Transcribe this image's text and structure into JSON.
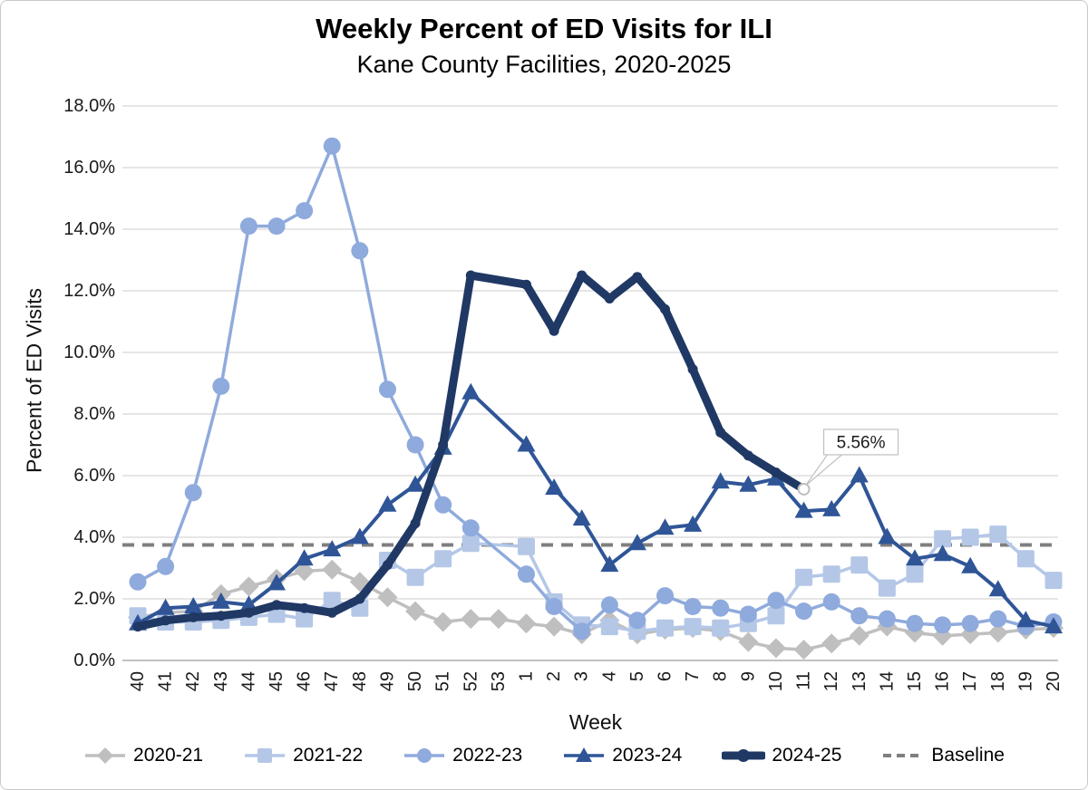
{
  "title": "Weekly Percent of ED Visits for ILI",
  "subtitle": "Kane County Facilities, 2020-2025",
  "chart_data": {
    "type": "line",
    "title": "Weekly Percent of ED Visits for ILI",
    "subtitle": "Kane County Facilities, 2020-2025",
    "xlabel": "Week",
    "ylabel": "Percent of ED Visits",
    "ylim": [
      0,
      18
    ],
    "y_tick_step": 2,
    "y_tick_labels": [
      "0.0%",
      "2.0%",
      "4.0%",
      "6.0%",
      "8.0%",
      "10.0%",
      "12.0%",
      "14.0%",
      "16.0%",
      "18.0%"
    ],
    "grid": true,
    "legend_position": "bottom",
    "categories": [
      "40",
      "41",
      "42",
      "43",
      "44",
      "45",
      "46",
      "47",
      "48",
      "49",
      "50",
      "51",
      "52",
      "53",
      "1",
      "2",
      "3",
      "4",
      "5",
      "6",
      "7",
      "8",
      "9",
      "10",
      "11",
      "12",
      "13",
      "14",
      "15",
      "16",
      "17",
      "18",
      "19",
      "20"
    ],
    "series": [
      {
        "name": "2020-21",
        "color": "#BFBFBF",
        "marker": "diamond",
        "line_width": 3.5,
        "values": [
          1.4,
          1.55,
          1.6,
          2.15,
          2.4,
          2.65,
          2.9,
          2.95,
          2.55,
          2.05,
          1.6,
          1.25,
          1.35,
          1.35,
          1.2,
          1.1,
          0.85,
          1.3,
          0.85,
          1.0,
          1.05,
          0.95,
          0.6,
          0.4,
          0.35,
          0.55,
          0.8,
          1.1,
          0.9,
          0.8,
          0.85,
          0.9,
          1.0,
          1.05
        ]
      },
      {
        "name": "2021-22",
        "color": "#B4C7E7",
        "marker": "square",
        "line_width": 3.5,
        "values": [
          1.45,
          1.25,
          1.25,
          1.3,
          1.4,
          1.5,
          1.35,
          1.95,
          1.7,
          3.25,
          2.7,
          3.3,
          3.8,
          null,
          3.7,
          1.9,
          1.15,
          1.1,
          0.95,
          1.05,
          1.1,
          1.05,
          1.2,
          1.45,
          2.7,
          2.8,
          3.1,
          2.35,
          2.8,
          3.95,
          4.0,
          4.1,
          3.3,
          2.6
        ]
      },
      {
        "name": "2022-23",
        "color": "#8FAADC",
        "marker": "circle",
        "line_width": 3.5,
        "values": [
          2.55,
          3.05,
          5.45,
          8.9,
          14.1,
          14.1,
          14.6,
          16.7,
          13.3,
          8.8,
          7.0,
          5.05,
          4.3,
          null,
          2.8,
          1.75,
          0.95,
          1.8,
          1.3,
          2.1,
          1.75,
          1.7,
          1.5,
          1.95,
          1.6,
          1.9,
          1.45,
          1.35,
          1.2,
          1.15,
          1.2,
          1.35,
          1.1,
          1.25
        ]
      },
      {
        "name": "2023-24",
        "color": "#2F5597",
        "marker": "triangle",
        "line_width": 4,
        "values": [
          1.2,
          1.7,
          1.75,
          1.9,
          1.8,
          2.5,
          3.3,
          3.6,
          4.0,
          5.05,
          5.7,
          6.9,
          8.7,
          null,
          7.0,
          5.6,
          4.6,
          3.1,
          3.8,
          4.3,
          4.4,
          5.8,
          5.7,
          5.9,
          4.85,
          4.9,
          6.0,
          4.0,
          3.3,
          3.45,
          3.05,
          2.3,
          1.3,
          1.1
        ]
      },
      {
        "name": "2024-25",
        "color": "#203864",
        "marker": "dot",
        "line_width": 9,
        "values": [
          1.1,
          1.3,
          1.4,
          1.45,
          1.55,
          1.8,
          1.7,
          1.55,
          2.0,
          3.1,
          4.45,
          7.0,
          12.5,
          null,
          12.2,
          10.7,
          12.5,
          11.75,
          12.45,
          11.4,
          9.45,
          7.4,
          6.65,
          6.1,
          5.56,
          null,
          null,
          null,
          null,
          null,
          null,
          null,
          null,
          null
        ]
      }
    ],
    "baseline": {
      "name": "Baseline",
      "value": 3.75,
      "color": "#7F7F7F",
      "style": "dashed"
    },
    "annotation": {
      "text": "5.56%",
      "series": "2024-25",
      "week": "11",
      "value": 5.56
    }
  }
}
